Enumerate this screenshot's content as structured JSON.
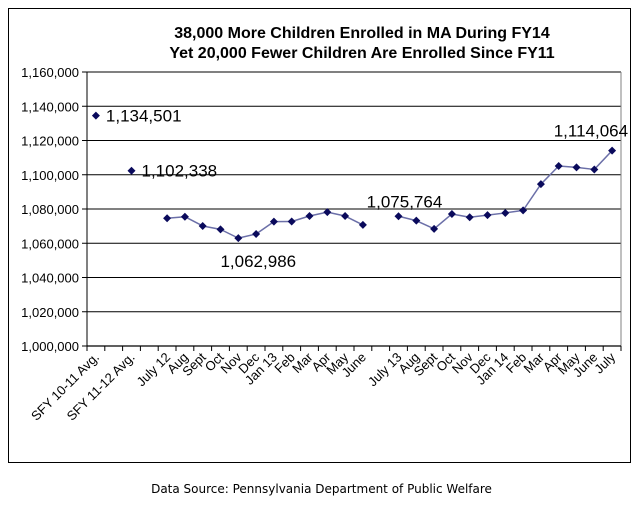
{
  "chart_data": {
    "type": "line",
    "title": [
      "38,000 More Children Enrolled in MA During FY14",
      "Yet 20,000 Fewer Children Are Enrolled Since FY11"
    ],
    "xlabel": "",
    "ylabel": "",
    "ylim": [
      1000000,
      1160000
    ],
    "ytick_step": 20000,
    "yticks": [
      "1,000,000",
      "1,020,000",
      "1,040,000",
      "1,060,000",
      "1,080,000",
      "1,100,000",
      "1,120,000",
      "1,140,000",
      "1,160,000"
    ],
    "grid": true,
    "legend": "none",
    "marker": "diamond",
    "line_color": "#6b6fa8",
    "marker_color": "#0a0a5c",
    "categories": [
      "SFY 10-11 Avg.",
      "",
      "SFY 11-12 Avg.",
      "",
      "July 12",
      "Aug",
      "Sept",
      "Oct",
      "Nov",
      "Dec",
      "Jan 13",
      "Feb",
      "Mar",
      "Apr",
      "May",
      "June",
      "",
      "July 13",
      "Aug",
      "Sept",
      "Oct",
      "Nov",
      "Dec",
      "Jan 14",
      "Feb",
      "Mar",
      "Apr",
      "May",
      "June",
      "July"
    ],
    "values": [
      1134501,
      null,
      1102338,
      null,
      1074600,
      1075500,
      1070100,
      1068100,
      1062986,
      1065400,
      1072600,
      1072700,
      1075900,
      1078200,
      1075900,
      1070700,
      null,
      1075764,
      1073200,
      1068400,
      1077100,
      1075200,
      1076400,
      1077700,
      1079200,
      1094500,
      1105100,
      1104300,
      1103100,
      1114064
    ],
    "annotations": [
      {
        "index": 0,
        "text": "1,134,501",
        "position": "right"
      },
      {
        "index": 2,
        "text": "1,102,338",
        "position": "right"
      },
      {
        "index": 8,
        "text": "1,062,986",
        "position": "below"
      },
      {
        "index": 17,
        "text": "1,075,764",
        "position": "above"
      },
      {
        "index": 29,
        "text": "1,114,064",
        "position": "above-left"
      }
    ]
  },
  "footer": {
    "source": "Data Source: Pennsylvania Department of Public Welfare"
  }
}
